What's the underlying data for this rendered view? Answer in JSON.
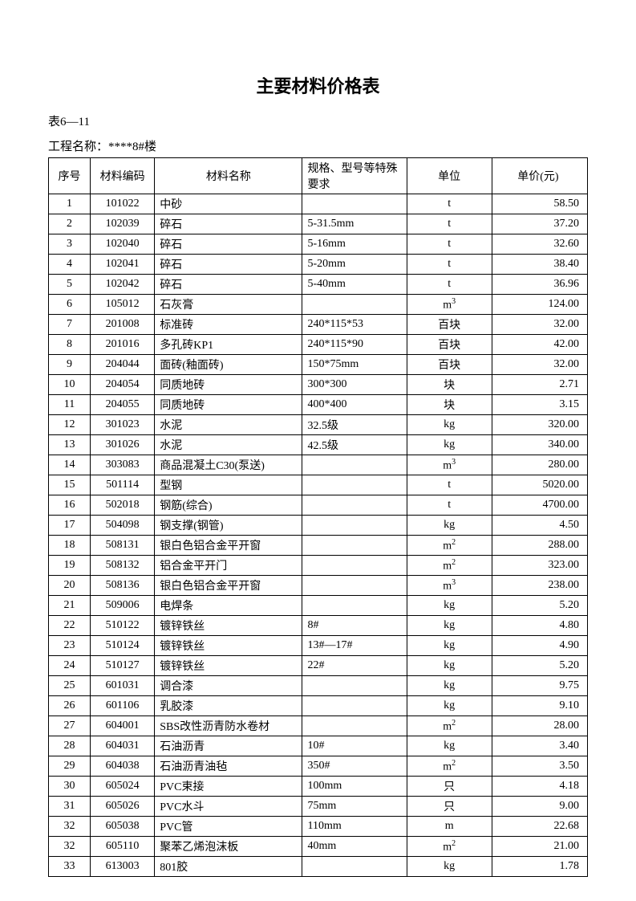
{
  "title": "主要材料价格表",
  "table_number": "表6—11",
  "project_label": "工程名称：",
  "project_name": "****8#楼",
  "columns": [
    "序号",
    "材料编码",
    "材料名称",
    "规格、型号等特殊要求",
    "单位",
    "单价(元)"
  ],
  "rows": [
    {
      "seq": "1",
      "code": "101022",
      "name": "中砂",
      "spec": "",
      "unit": "t",
      "price": "58.50"
    },
    {
      "seq": "2",
      "code": "102039",
      "name": "碎石",
      "spec": "5-31.5mm",
      "unit": "t",
      "price": "37.20"
    },
    {
      "seq": "3",
      "code": "102040",
      "name": "碎石",
      "spec": "5-16mm",
      "unit": "t",
      "price": "32.60"
    },
    {
      "seq": "4",
      "code": "102041",
      "name": "碎石",
      "spec": "5-20mm",
      "unit": "t",
      "price": "38.40"
    },
    {
      "seq": "5",
      "code": "102042",
      "name": "碎石",
      "spec": "5-40mm",
      "unit": "t",
      "price": "36.96"
    },
    {
      "seq": "6",
      "code": "105012",
      "name": "石灰膏",
      "spec": "",
      "unit": "m³",
      "price": "124.00"
    },
    {
      "seq": "7",
      "code": "201008",
      "name": "标准砖",
      "spec": "240*115*53",
      "unit": "百块",
      "price": "32.00"
    },
    {
      "seq": "8",
      "code": "201016",
      "name": "多孔砖KP1",
      "spec": "240*115*90",
      "unit": "百块",
      "price": "42.00"
    },
    {
      "seq": "9",
      "code": "204044",
      "name": "面砖(釉面砖)",
      "spec": "150*75mm",
      "unit": "百块",
      "price": "32.00"
    },
    {
      "seq": "10",
      "code": "204054",
      "name": "同质地砖",
      "spec": "300*300",
      "unit": "块",
      "price": "2.71"
    },
    {
      "seq": "11",
      "code": "204055",
      "name": "同质地砖",
      "spec": "400*400",
      "unit": "块",
      "price": "3.15"
    },
    {
      "seq": "12",
      "code": "301023",
      "name": "水泥",
      "spec": "32.5级",
      "unit": "kg",
      "price": "320.00"
    },
    {
      "seq": "13",
      "code": "301026",
      "name": "水泥",
      "spec": "42.5级",
      "unit": "kg",
      "price": "340.00"
    },
    {
      "seq": "14",
      "code": "303083",
      "name": "商品混凝土C30(泵送)",
      "spec": "",
      "unit": "m³",
      "price": "280.00"
    },
    {
      "seq": "15",
      "code": "501114",
      "name": "型钢",
      "spec": "",
      "unit": "t",
      "price": "5020.00"
    },
    {
      "seq": "16",
      "code": "502018",
      "name": "钢筋(综合)",
      "spec": "",
      "unit": "t",
      "price": "4700.00"
    },
    {
      "seq": "17",
      "code": "504098",
      "name": "钢支撑(钢管)",
      "spec": "",
      "unit": "kg",
      "price": "4.50"
    },
    {
      "seq": "18",
      "code": "508131",
      "name": "银白色铝合金平开窗",
      "spec": "",
      "unit": "m²",
      "price": "288.00"
    },
    {
      "seq": "19",
      "code": "508132",
      "name": "铝合金平开门",
      "spec": "",
      "unit": "m²",
      "price": "323.00"
    },
    {
      "seq": "20",
      "code": "508136",
      "name": "银白色铝合金平开窗",
      "spec": "",
      "unit": "m³",
      "price": "238.00"
    },
    {
      "seq": "21",
      "code": "509006",
      "name": "电焊条",
      "spec": "",
      "unit": "kg",
      "price": "5.20"
    },
    {
      "seq": "22",
      "code": "510122",
      "name": "镀锌铁丝",
      "spec": "8#",
      "unit": "kg",
      "price": "4.80"
    },
    {
      "seq": "23",
      "code": "510124",
      "name": "镀锌铁丝",
      "spec": "13#—17#",
      "unit": "kg",
      "price": "4.90"
    },
    {
      "seq": "24",
      "code": "510127",
      "name": "镀锌铁丝",
      "spec": "22#",
      "unit": "kg",
      "price": "5.20"
    },
    {
      "seq": "25",
      "code": "601031",
      "name": "调合漆",
      "spec": "",
      "unit": "kg",
      "price": "9.75"
    },
    {
      "seq": "26",
      "code": "601106",
      "name": "乳胶漆",
      "spec": "",
      "unit": "kg",
      "price": "9.10"
    },
    {
      "seq": "27",
      "code": "604001",
      "name": "SBS改性沥青防水卷材",
      "spec": "",
      "unit": "m²",
      "price": "28.00"
    },
    {
      "seq": "28",
      "code": "604031",
      "name": "石油沥青",
      "spec": "10#",
      "unit": "kg",
      "price": "3.40"
    },
    {
      "seq": "29",
      "code": "604038",
      "name": "石油沥青油毡",
      "spec": "350#",
      "unit": "m²",
      "price": "3.50"
    },
    {
      "seq": "30",
      "code": "605024",
      "name": "PVC束接",
      "spec": "100mm",
      "unit": "只",
      "price": "4.18"
    },
    {
      "seq": "31",
      "code": "605026",
      "name": "PVC水斗",
      "spec": "75mm",
      "unit": "只",
      "price": "9.00"
    },
    {
      "seq": "32",
      "code": "605038",
      "name": "PVC管",
      "spec": "110mm",
      "unit": "m",
      "price": "22.68"
    },
    {
      "seq": "32",
      "code": "605110",
      "name": "聚苯乙烯泡沫板",
      "spec": "40mm",
      "unit": "m²",
      "price": "21.00"
    },
    {
      "seq": "33",
      "code": "613003",
      "name": "801胶",
      "spec": "",
      "unit": "kg",
      "price": "1.78"
    }
  ]
}
